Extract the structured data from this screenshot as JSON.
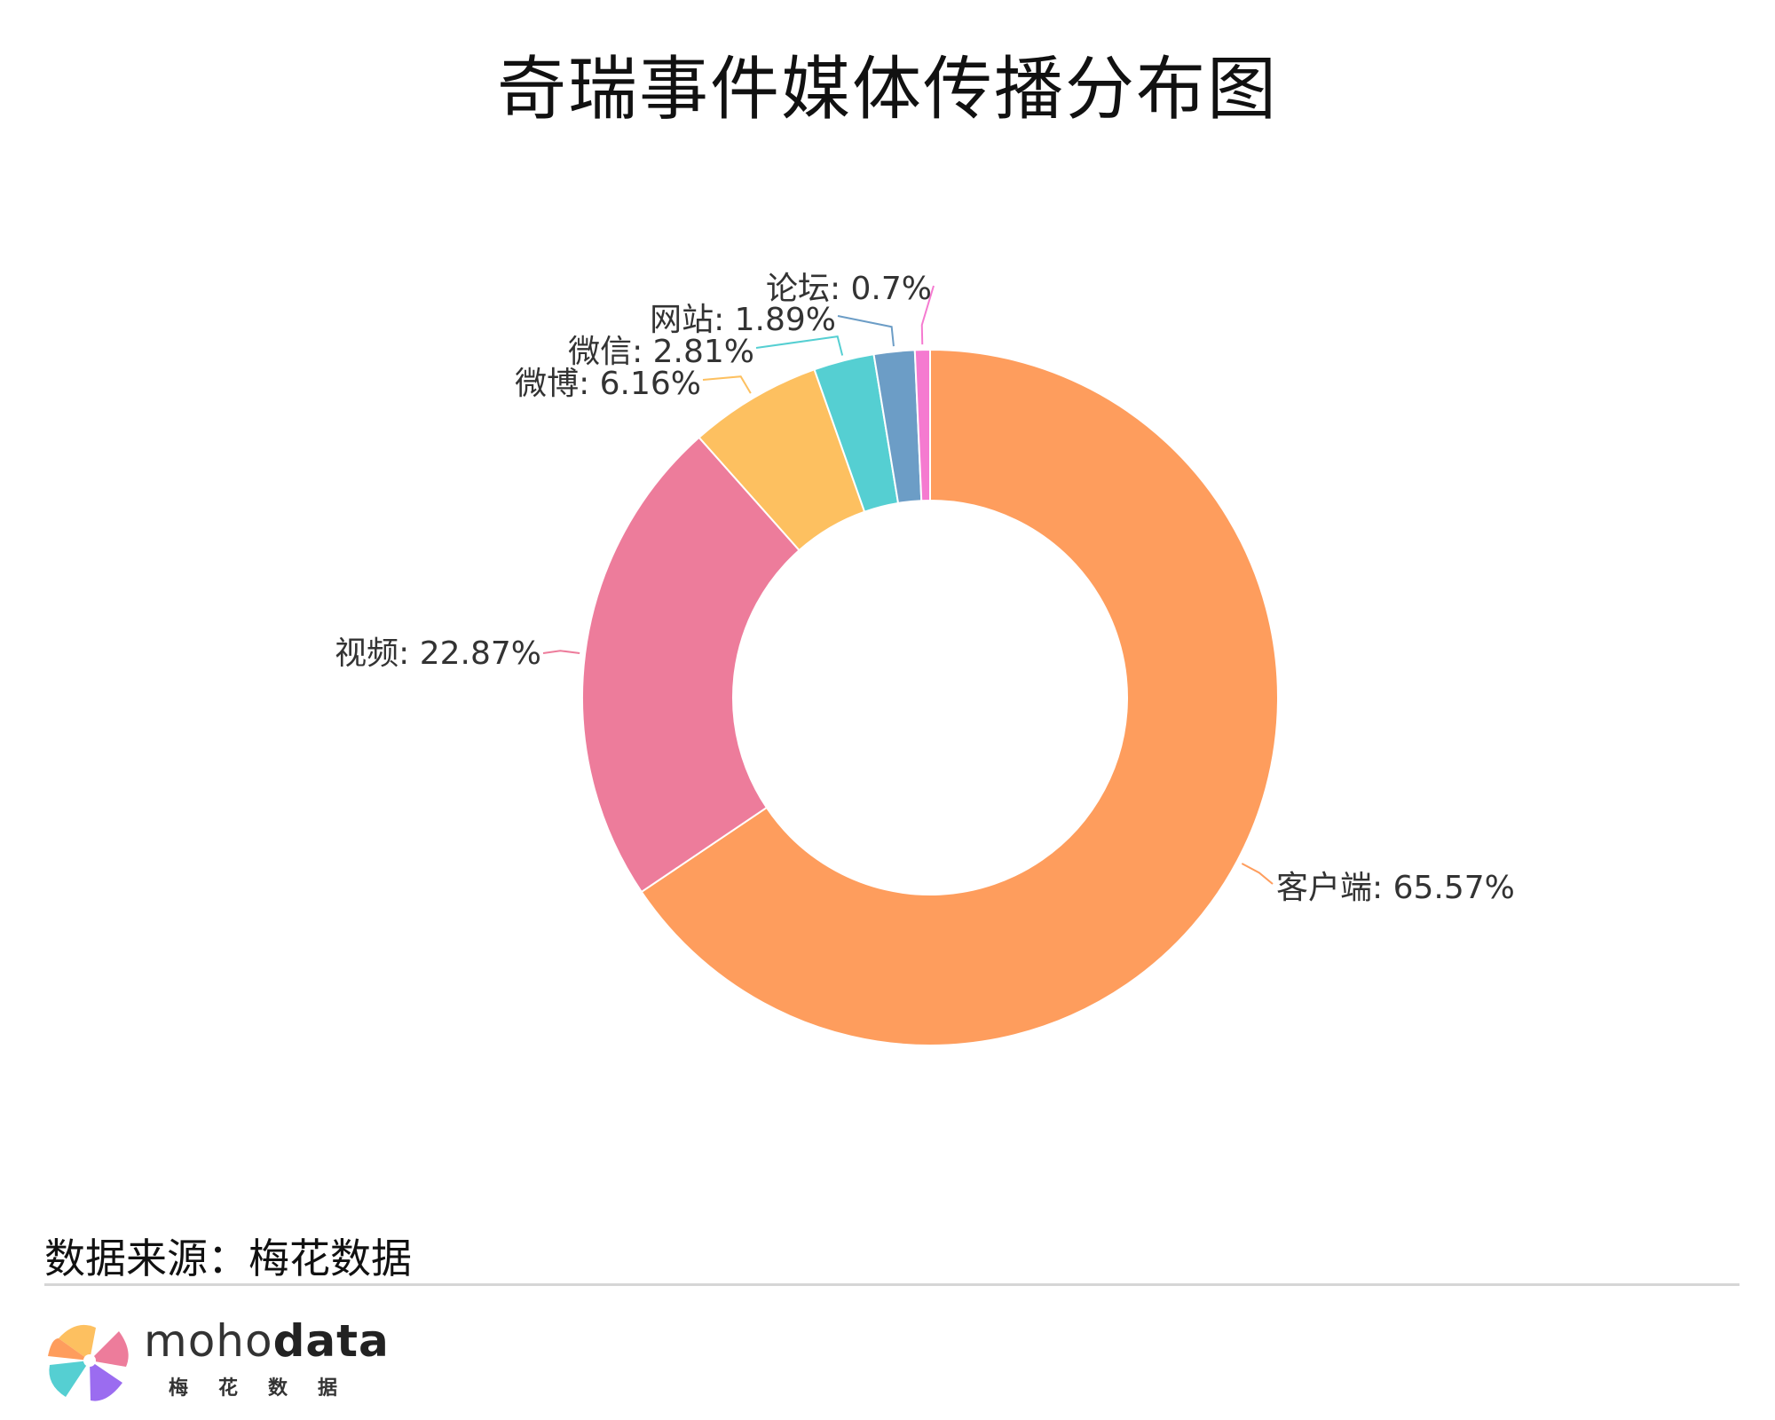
{
  "chart_data": {
    "type": "pie",
    "title": "奇瑞事件媒体传播分布图",
    "donut": true,
    "slices": [
      {
        "name": "客户端",
        "value": 65.57,
        "label": "客户端: 65.57%",
        "color": "#fe9d5d"
      },
      {
        "name": "视频",
        "value": 22.87,
        "label": "视频: 22.87%",
        "color": "#ed7c9b"
      },
      {
        "name": "微博",
        "value": 6.16,
        "label": "微博: 6.16%",
        "color": "#fdc060"
      },
      {
        "name": "微信",
        "value": 2.81,
        "label": "微信: 2.81%",
        "color": "#55cfd2"
      },
      {
        "name": "网站",
        "value": 1.89,
        "label": "网站: 1.89%",
        "color": "#6c9dc6"
      },
      {
        "name": "论坛",
        "value": 0.7,
        "label": "论坛: 0.7%",
        "color": "#f57ad0"
      }
    ]
  },
  "footer": {
    "source": "数据来源：梅花数据",
    "brand_light": "moho",
    "brand_bold": "data",
    "brand_sub": "梅花数据"
  }
}
